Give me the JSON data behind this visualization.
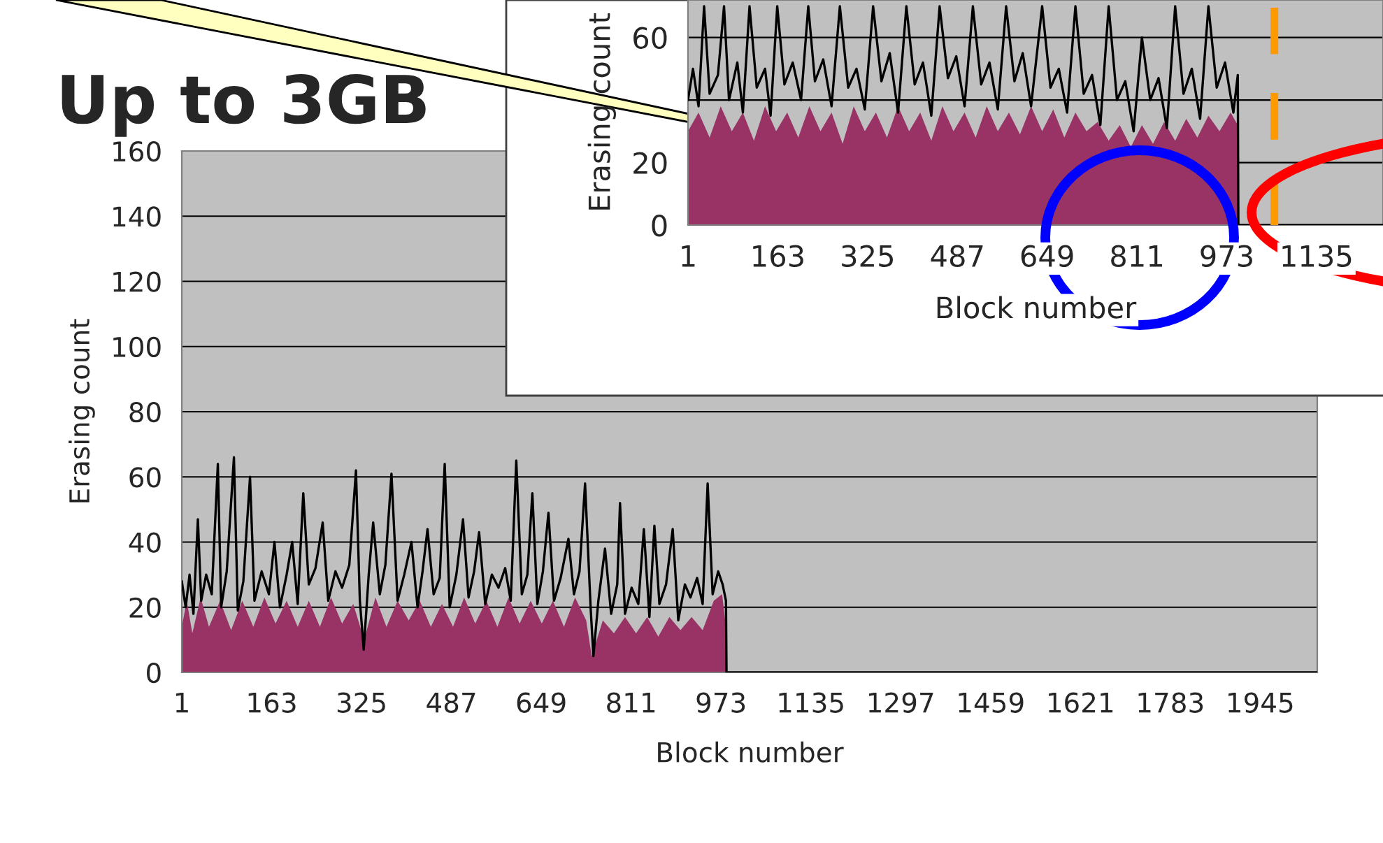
{
  "chart_data": [
    {
      "type": "line",
      "title": "Up to 3GB",
      "xlabel": "Block number",
      "ylabel": "Erasing count",
      "xlim": [
        1,
        2048
      ],
      "xticks": [
        1,
        163,
        325,
        487,
        649,
        811,
        973,
        1135,
        1297,
        1459,
        1621,
        1783,
        1945
      ],
      "ylim": [
        0,
        160
      ],
      "yticks": [
        0,
        20,
        40,
        60,
        80,
        100,
        120,
        140,
        160
      ],
      "grid": "y",
      "legend": false,
      "series": [
        {
          "type": "area",
          "color": "#993366",
          "x": [
            1,
            10,
            20,
            35,
            50,
            70,
            90,
            110,
            130,
            150,
            170,
            190,
            210,
            230,
            250,
            270,
            290,
            310,
            330,
            350,
            370,
            390,
            410,
            430,
            450,
            470,
            490,
            510,
            530,
            550,
            570,
            590,
            610,
            630,
            650,
            670,
            690,
            710,
            730,
            740,
            760,
            780,
            800,
            820,
            840,
            860,
            880,
            900,
            920,
            940,
            960,
            975,
            982,
            983,
            2048
          ],
          "values": [
            14,
            22,
            12,
            23,
            14,
            22,
            13,
            22,
            14,
            23,
            15,
            22,
            14,
            22,
            14,
            23,
            15,
            21,
            10,
            23,
            14,
            22,
            16,
            22,
            14,
            21,
            14,
            23,
            15,
            22,
            14,
            23,
            15,
            22,
            15,
            22,
            14,
            23,
            16,
            5,
            16,
            12,
            17,
            12,
            17,
            11,
            17,
            13,
            17,
            13,
            22,
            24,
            14,
            0,
            0
          ]
        },
        {
          "type": "line",
          "color": "#000000",
          "x": [
            1,
            8,
            15,
            22,
            30,
            36,
            45,
            55,
            66,
            72,
            82,
            95,
            102,
            112,
            124,
            132,
            145,
            158,
            168,
            178,
            190,
            200,
            210,
            220,
            230,
            242,
            255,
            265,
            278,
            290,
            303,
            315,
            322,
            329,
            338,
            346,
            358,
            368,
            379,
            390,
            402,
            415,
            426,
            435,
            444,
            455,
            466,
            475,
            484,
            496,
            508,
            518,
            528,
            537,
            548,
            560,
            572,
            584,
            594,
            604,
            614,
            624,
            633,
            642,
            652,
            662,
            672,
            684,
            698,
            708,
            718,
            728,
            738,
            743,
            752,
            764,
            775,
            786,
            791,
            800,
            812,
            824,
            834,
            844,
            853,
            862,
            874,
            886,
            896,
            908,
            918,
            930,
            940,
            949,
            958,
            968,
            976,
            982,
            983,
            2048
          ],
          "values": [
            28,
            20,
            30,
            18,
            47,
            22,
            30,
            24,
            64,
            20,
            31,
            66,
            19,
            28,
            60,
            22,
            31,
            24,
            40,
            20,
            30,
            40,
            21,
            55,
            27,
            32,
            46,
            22,
            31,
            26,
            33,
            62,
            22,
            7,
            30,
            46,
            24,
            33,
            61,
            22,
            30,
            40,
            20,
            31,
            44,
            24,
            29,
            64,
            20,
            30,
            47,
            23,
            31,
            43,
            21,
            30,
            26,
            32,
            22,
            65,
            24,
            30,
            55,
            21,
            31,
            49,
            22,
            29,
            41,
            24,
            31,
            58,
            20,
            5,
            22,
            38,
            18,
            27,
            52,
            18,
            26,
            21,
            44,
            17,
            45,
            21,
            27,
            44,
            16,
            27,
            23,
            29,
            21,
            58,
            24,
            31,
            27,
            22,
            0,
            0
          ]
        }
      ]
    },
    {
      "type": "line",
      "xlabel": "Block number",
      "ylabel": "Erasing count",
      "xlim": [
        1,
        1255
      ],
      "xticks": [
        1,
        163,
        325,
        487,
        649,
        811,
        973,
        1135
      ],
      "ylim": [
        0,
        72
      ],
      "yticks": [
        0,
        20,
        {
          "value": 40,
          "label": null
        },
        60
      ],
      "grid": "y",
      "legend": false,
      "ref_lines": [
        {
          "axis": "x",
          "value": 1059,
          "color": "#ff9900",
          "line_style": "dashed"
        }
      ],
      "series": [
        {
          "type": "area",
          "color": "#993366",
          "x": [
            1,
            20,
            40,
            60,
            80,
            100,
            120,
            140,
            160,
            180,
            200,
            220,
            240,
            260,
            280,
            300,
            320,
            340,
            360,
            380,
            400,
            420,
            440,
            460,
            480,
            500,
            520,
            540,
            560,
            580,
            600,
            620,
            640,
            660,
            680,
            700,
            720,
            740,
            760,
            780,
            800,
            820,
            840,
            860,
            880,
            900,
            920,
            940,
            960,
            980,
            993,
            994,
            1255
          ],
          "values": [
            30,
            36,
            28,
            38,
            30,
            36,
            27,
            38,
            30,
            36,
            28,
            38,
            30,
            36,
            26,
            38,
            30,
            36,
            28,
            38,
            30,
            36,
            27,
            38,
            30,
            36,
            28,
            38,
            30,
            36,
            29,
            38,
            30,
            37,
            28,
            36,
            30,
            33,
            27,
            32,
            25,
            32,
            26,
            33,
            27,
            34,
            28,
            35,
            30,
            36,
            32,
            0,
            0
          ]
        },
        {
          "type": "line",
          "color": "#000000",
          "x": [
            1,
            10,
            20,
            30,
            40,
            55,
            66,
            75,
            90,
            100,
            112,
            125,
            140,
            150,
            162,
            175,
            190,
            205,
            218,
            230,
            245,
            260,
            275,
            290,
            305,
            320,
            335,
            350,
            365,
            380,
            395,
            410,
            425,
            440,
            455,
            470,
            485,
            500,
            515,
            530,
            545,
            560,
            575,
            590,
            605,
            620,
            640,
            655,
            670,
            685,
            700,
            715,
            730,
            745,
            760,
            775,
            790,
            805,
            820,
            835,
            850,
            865,
            880,
            895,
            910,
            925,
            940,
            955,
            970,
            985,
            993,
            994,
            1255
          ],
          "values": [
            40,
            50,
            38,
            70,
            42,
            48,
            70,
            40,
            52,
            36,
            70,
            44,
            50,
            35,
            70,
            45,
            52,
            40,
            70,
            46,
            53,
            38,
            70,
            44,
            50,
            37,
            70,
            46,
            55,
            36,
            70,
            45,
            52,
            35,
            70,
            47,
            54,
            38,
            70,
            45,
            52,
            37,
            70,
            46,
            55,
            38,
            70,
            44,
            50,
            36,
            70,
            42,
            48,
            32,
            70,
            40,
            46,
            30,
            60,
            40,
            47,
            31,
            70,
            42,
            50,
            34,
            70,
            44,
            52,
            36,
            48,
            0,
            0
          ]
        }
      ]
    }
  ]
}
